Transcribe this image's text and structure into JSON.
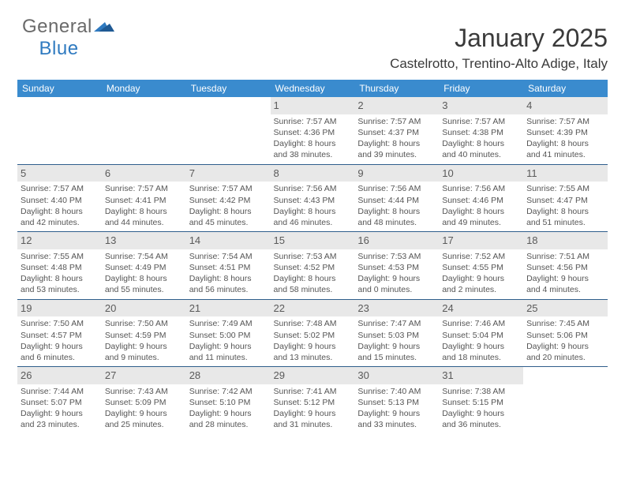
{
  "brand": {
    "part1": "General",
    "part2": "Blue"
  },
  "month_title": "January 2025",
  "location": "Castelrotto, Trentino-Alto Adige, Italy",
  "calendar": {
    "type": "table",
    "background_color": "#ffffff",
    "header_bg": "#3a8bce",
    "header_text_color": "#ffffff",
    "row_border_color": "#2f5e8c",
    "daynum_bg": "#e8e8e8",
    "body_text_color": "#555555",
    "title_fontsize_pt": 24,
    "location_fontsize_pt": 13,
    "header_fontsize_pt": 9,
    "cell_fontsize_pt": 8,
    "columns": [
      "Sunday",
      "Monday",
      "Tuesday",
      "Wednesday",
      "Thursday",
      "Friday",
      "Saturday"
    ],
    "weeks": [
      [
        null,
        null,
        null,
        {
          "day": "1",
          "sunrise": "7:57 AM",
          "sunset": "4:36 PM",
          "daylight_h": "8",
          "daylight_m": "38"
        },
        {
          "day": "2",
          "sunrise": "7:57 AM",
          "sunset": "4:37 PM",
          "daylight_h": "8",
          "daylight_m": "39"
        },
        {
          "day": "3",
          "sunrise": "7:57 AM",
          "sunset": "4:38 PM",
          "daylight_h": "8",
          "daylight_m": "40"
        },
        {
          "day": "4",
          "sunrise": "7:57 AM",
          "sunset": "4:39 PM",
          "daylight_h": "8",
          "daylight_m": "41"
        }
      ],
      [
        {
          "day": "5",
          "sunrise": "7:57 AM",
          "sunset": "4:40 PM",
          "daylight_h": "8",
          "daylight_m": "42"
        },
        {
          "day": "6",
          "sunrise": "7:57 AM",
          "sunset": "4:41 PM",
          "daylight_h": "8",
          "daylight_m": "44"
        },
        {
          "day": "7",
          "sunrise": "7:57 AM",
          "sunset": "4:42 PM",
          "daylight_h": "8",
          "daylight_m": "45"
        },
        {
          "day": "8",
          "sunrise": "7:56 AM",
          "sunset": "4:43 PM",
          "daylight_h": "8",
          "daylight_m": "46"
        },
        {
          "day": "9",
          "sunrise": "7:56 AM",
          "sunset": "4:44 PM",
          "daylight_h": "8",
          "daylight_m": "48"
        },
        {
          "day": "10",
          "sunrise": "7:56 AM",
          "sunset": "4:46 PM",
          "daylight_h": "8",
          "daylight_m": "49"
        },
        {
          "day": "11",
          "sunrise": "7:55 AM",
          "sunset": "4:47 PM",
          "daylight_h": "8",
          "daylight_m": "51"
        }
      ],
      [
        {
          "day": "12",
          "sunrise": "7:55 AM",
          "sunset": "4:48 PM",
          "daylight_h": "8",
          "daylight_m": "53"
        },
        {
          "day": "13",
          "sunrise": "7:54 AM",
          "sunset": "4:49 PM",
          "daylight_h": "8",
          "daylight_m": "55"
        },
        {
          "day": "14",
          "sunrise": "7:54 AM",
          "sunset": "4:51 PM",
          "daylight_h": "8",
          "daylight_m": "56"
        },
        {
          "day": "15",
          "sunrise": "7:53 AM",
          "sunset": "4:52 PM",
          "daylight_h": "8",
          "daylight_m": "58"
        },
        {
          "day": "16",
          "sunrise": "7:53 AM",
          "sunset": "4:53 PM",
          "daylight_h": "9",
          "daylight_m": "0"
        },
        {
          "day": "17",
          "sunrise": "7:52 AM",
          "sunset": "4:55 PM",
          "daylight_h": "9",
          "daylight_m": "2"
        },
        {
          "day": "18",
          "sunrise": "7:51 AM",
          "sunset": "4:56 PM",
          "daylight_h": "9",
          "daylight_m": "4"
        }
      ],
      [
        {
          "day": "19",
          "sunrise": "7:50 AM",
          "sunset": "4:57 PM",
          "daylight_h": "9",
          "daylight_m": "6"
        },
        {
          "day": "20",
          "sunrise": "7:50 AM",
          "sunset": "4:59 PM",
          "daylight_h": "9",
          "daylight_m": "9"
        },
        {
          "day": "21",
          "sunrise": "7:49 AM",
          "sunset": "5:00 PM",
          "daylight_h": "9",
          "daylight_m": "11"
        },
        {
          "day": "22",
          "sunrise": "7:48 AM",
          "sunset": "5:02 PM",
          "daylight_h": "9",
          "daylight_m": "13"
        },
        {
          "day": "23",
          "sunrise": "7:47 AM",
          "sunset": "5:03 PM",
          "daylight_h": "9",
          "daylight_m": "15"
        },
        {
          "day": "24",
          "sunrise": "7:46 AM",
          "sunset": "5:04 PM",
          "daylight_h": "9",
          "daylight_m": "18"
        },
        {
          "day": "25",
          "sunrise": "7:45 AM",
          "sunset": "5:06 PM",
          "daylight_h": "9",
          "daylight_m": "20"
        }
      ],
      [
        {
          "day": "26",
          "sunrise": "7:44 AM",
          "sunset": "5:07 PM",
          "daylight_h": "9",
          "daylight_m": "23"
        },
        {
          "day": "27",
          "sunrise": "7:43 AM",
          "sunset": "5:09 PM",
          "daylight_h": "9",
          "daylight_m": "25"
        },
        {
          "day": "28",
          "sunrise": "7:42 AM",
          "sunset": "5:10 PM",
          "daylight_h": "9",
          "daylight_m": "28"
        },
        {
          "day": "29",
          "sunrise": "7:41 AM",
          "sunset": "5:12 PM",
          "daylight_h": "9",
          "daylight_m": "31"
        },
        {
          "day": "30",
          "sunrise": "7:40 AM",
          "sunset": "5:13 PM",
          "daylight_h": "9",
          "daylight_m": "33"
        },
        {
          "day": "31",
          "sunrise": "7:38 AM",
          "sunset": "5:15 PM",
          "daylight_h": "9",
          "daylight_m": "36"
        },
        null
      ]
    ],
    "labels": {
      "sunrise": "Sunrise: ",
      "sunset": "Sunset: ",
      "daylight_prefix": "Daylight: ",
      "hours": " hours",
      "and": "and ",
      "minutes": " minutes."
    }
  }
}
